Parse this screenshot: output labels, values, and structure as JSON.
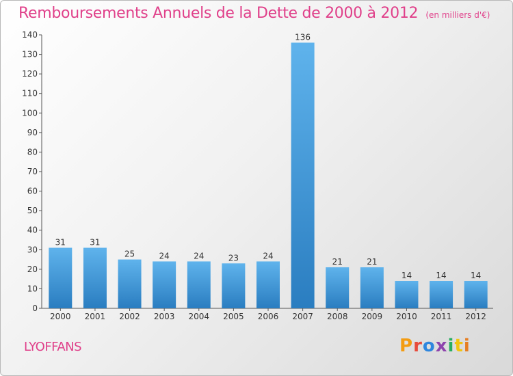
{
  "title": "Remboursements Annuels de la Dette de 2000 à 2012",
  "unit": "(en milliers d'€)",
  "commune": "LYOFFANS",
  "logo": {
    "text": "Proxiti",
    "colors": [
      "#f39c12",
      "#e74c3c",
      "#2e86de",
      "#8e44ad",
      "#27ae60",
      "#f1c40f",
      "#e67e22"
    ]
  },
  "chart_data": {
    "type": "bar",
    "categories": [
      "2000",
      "2001",
      "2002",
      "2003",
      "2004",
      "2005",
      "2006",
      "2007",
      "2008",
      "2009",
      "2010",
      "2011",
      "2012"
    ],
    "values": [
      31,
      31,
      25,
      24,
      24,
      23,
      24,
      136,
      21,
      21,
      14,
      14,
      14
    ],
    "ylim": [
      0,
      140
    ],
    "yticks": [
      0,
      10,
      20,
      30,
      40,
      50,
      60,
      70,
      80,
      90,
      100,
      110,
      120,
      130,
      140
    ],
    "grid": false,
    "bar_color": "#3a99dd"
  }
}
